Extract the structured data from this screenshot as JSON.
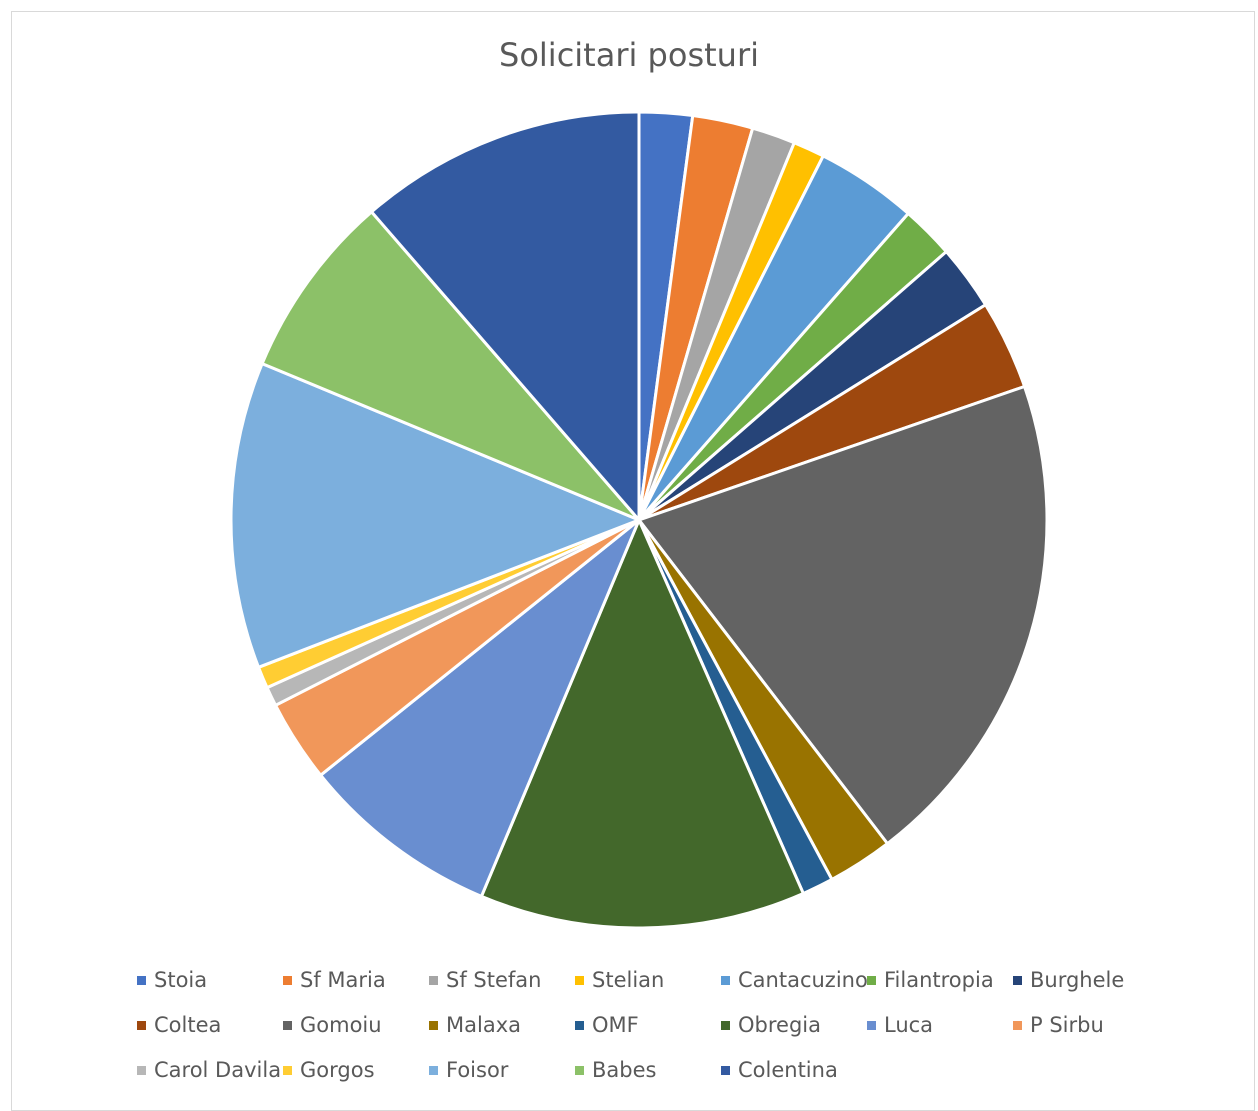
{
  "chart_data": {
    "type": "pie",
    "title": "Solicitari posturi",
    "legend_position": "bottom",
    "categories": [
      "Stoia",
      "Sf Maria",
      "Sf Stefan",
      "Stelian",
      "Cantacuzino",
      "Filantropia",
      "Burghele",
      "Coltea",
      "Gomoiu",
      "Malaxa",
      "OMF",
      "Obregia",
      "Luca",
      "P Sirbu",
      "Carol Davila",
      "Gorgos",
      "Foisor",
      "Babes",
      "Colentina"
    ],
    "values": [
      2.2,
      2.5,
      1.8,
      1.3,
      4.2,
      2.2,
      2.7,
      3.7,
      20.8,
      2.7,
      1.3,
      13.5,
      8.3,
      3.4,
      0.8,
      0.9,
      12.7,
      7.7,
      11.9
    ],
    "colors": [
      "#4472c4",
      "#ed7d31",
      "#a5a5a5",
      "#ffc000",
      "#5b9bd5",
      "#70ad47",
      "#264478",
      "#9e480e",
      "#636363",
      "#997300",
      "#255e91",
      "#43682b",
      "#698ed0",
      "#f1975a",
      "#b7b7b7",
      "#ffcd33",
      "#7cafdd",
      "#8cc168",
      "#335aa1"
    ]
  }
}
